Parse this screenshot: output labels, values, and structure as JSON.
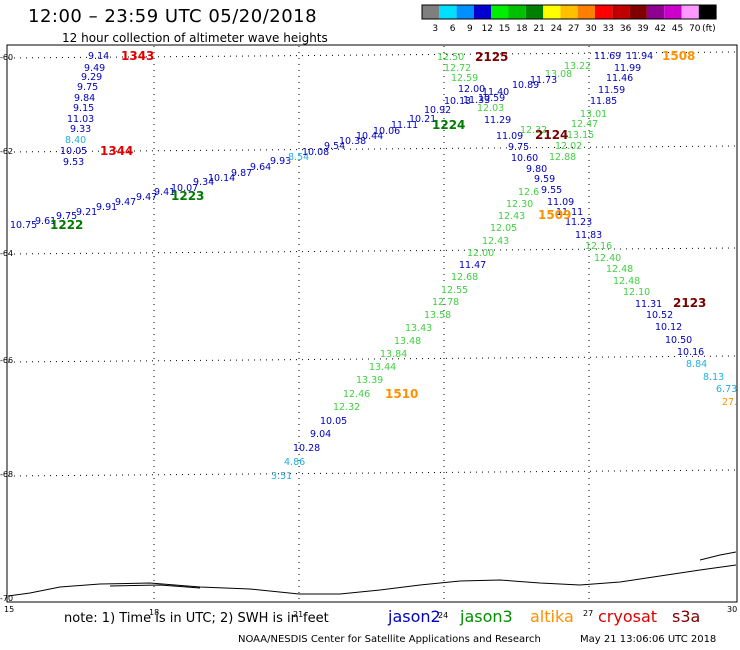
{
  "header": {
    "title": "12:00 – 23:59 UTC 05/20/2018",
    "subtitle": "12 hour collection of altimeter wave heights"
  },
  "colorbar": {
    "unit": "(ft)",
    "bins": [
      {
        "label": "3",
        "color": "#7f7f7f"
      },
      {
        "label": "6",
        "color": "#00dfff"
      },
      {
        "label": "9",
        "color": "#0090ff"
      },
      {
        "label": "12",
        "color": "#0000d0"
      },
      {
        "label": "15",
        "color": "#00ee00"
      },
      {
        "label": "18",
        "color": "#00c000"
      },
      {
        "label": "21",
        "color": "#008000"
      },
      {
        "label": "24",
        "color": "#ffff00"
      },
      {
        "label": "27",
        "color": "#ffc000"
      },
      {
        "label": "30",
        "color": "#ff8000"
      },
      {
        "label": "33",
        "color": "#ff0000"
      },
      {
        "label": "36",
        "color": "#c00000"
      },
      {
        "label": "39",
        "color": "#800000"
      },
      {
        "label": "42",
        "color": "#900090"
      },
      {
        "label": "45",
        "color": "#cc00cc"
      },
      {
        "label": "70",
        "color": "#ff99ff"
      },
      {
        "label": "",
        "color": "#000000"
      }
    ]
  },
  "axes": {
    "lon_labels": [
      "15",
      "18",
      "21",
      "24",
      "27",
      "30"
    ],
    "lat_labels": [
      "-60",
      "-62",
      "-64",
      "-66",
      "-68",
      "-70"
    ]
  },
  "passes": [
    {
      "label": "1343",
      "color": "#e00000"
    },
    {
      "label": "1344",
      "color": "#e00000"
    },
    {
      "label": "1222",
      "color": "#007a00"
    },
    {
      "label": "1223",
      "color": "#007a00"
    },
    {
      "label": "1224",
      "color": "#007a00"
    },
    {
      "label": "2125",
      "color": "#7a0000"
    },
    {
      "label": "2124",
      "color": "#7a0000"
    },
    {
      "label": "2123",
      "color": "#7a0000"
    },
    {
      "label": "1508",
      "color": "#ff9000"
    },
    {
      "label": "1509",
      "color": "#ff9000"
    },
    {
      "label": "1510",
      "color": "#ff9000"
    }
  ],
  "swh": {
    "t1343": [
      "9.14",
      "9.49",
      "9.29",
      "9.75",
      "9.84",
      "9.15",
      "11.03",
      "9.33",
      "8.40",
      "10.05",
      "9.53"
    ],
    "t1222": [
      "10.75",
      "9.61",
      "9.75",
      "9.21",
      "9.91",
      "9.47",
      "9.47",
      "9.41",
      "10.07",
      "9.34",
      "10.14",
      "9.87",
      "9.64",
      "9.93",
      "8.54",
      "10.08",
      "9.54",
      "10.38",
      "10.44",
      "10.06",
      "11.11",
      "10.21",
      "10.92",
      "10.13"
    ],
    "t2125": [
      "12.50",
      "12.72",
      "12.59",
      "12.00",
      "11.33",
      "11.29",
      "11.09",
      "9.75",
      "10.60",
      "9.80",
      "9.59",
      "9.55",
      "11.09",
      "11.11",
      "11.23",
      "11.83",
      "12.16",
      "12.40",
      "12.48",
      "12.48",
      "12.10",
      "11.31",
      "10.52",
      "10.12",
      "10.50",
      "10.16",
      "8.84",
      "8.13",
      "6.73",
      "27."
    ],
    "t1508": [
      "11.69",
      "11.94",
      "11.99",
      "11.46",
      "11.59",
      "11.85",
      "13.01",
      "12.47",
      "12.02",
      "12.88",
      "12.6",
      "12.30",
      "12.43",
      "12.05",
      "12.43",
      "12.00",
      "11.47",
      "12.68",
      "12.55",
      "12.78",
      "13.58",
      "13.43",
      "13.48",
      "13.84",
      "13.44",
      "13.39",
      "12.46",
      "12.32",
      "10.05",
      "9.04",
      "10.28",
      "4.86",
      "3.51"
    ],
    "t_misc": [
      "13.22",
      "13.08",
      "11.73",
      "10.89",
      "11.40",
      "10.59",
      "12.03",
      "13.15",
      "12.32"
    ]
  },
  "footer": {
    "note": "note: 1) Time is in UTC; 2) SWH is in feet",
    "satellites": [
      {
        "name": "jason2",
        "color": "#0000c0"
      },
      {
        "name": "jason3",
        "color": "#009000"
      },
      {
        "name": "altika",
        "color": "#ff9000"
      },
      {
        "name": "cryosat",
        "color": "#e00000"
      },
      {
        "name": "s3a",
        "color": "#800000"
      }
    ],
    "credit": "NOAA/NESDIS Center for Satellite Applications and Research",
    "timestamp": "May 21 13:06:06 UTC 2018"
  }
}
